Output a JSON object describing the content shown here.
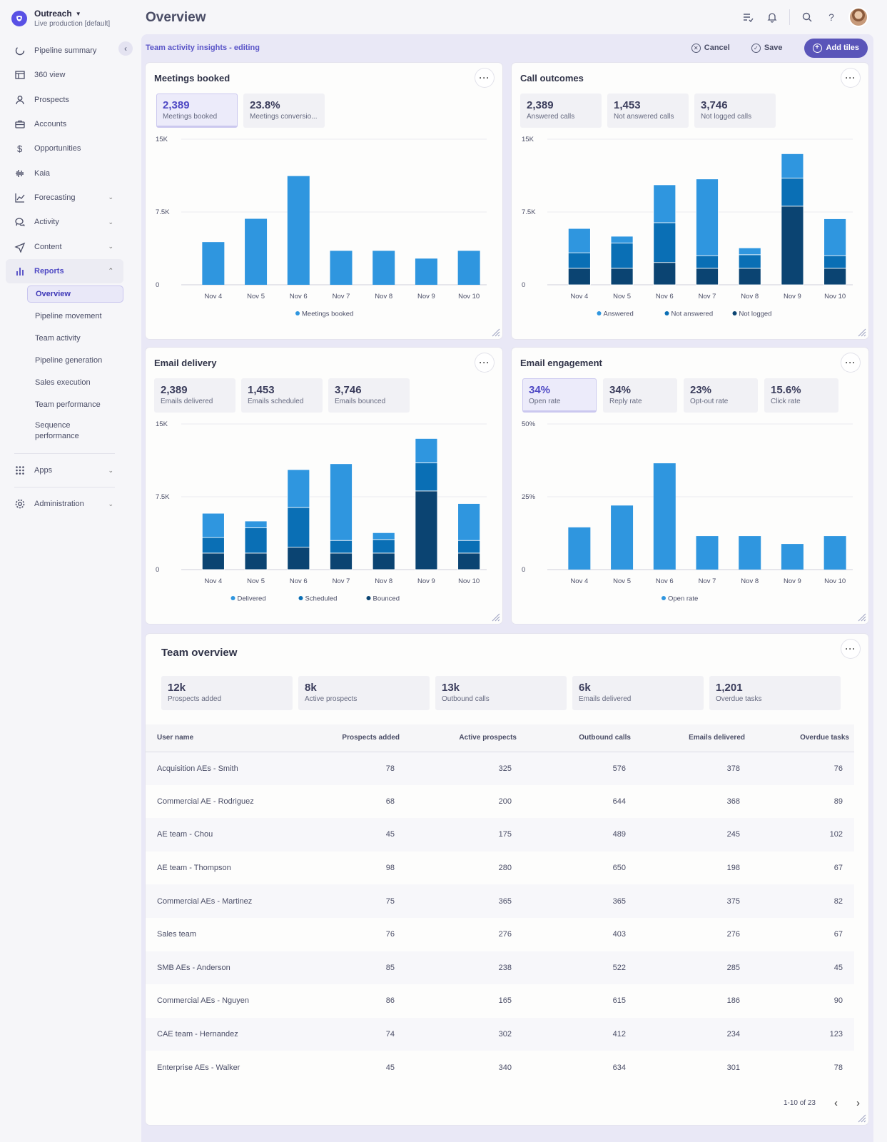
{
  "org": {
    "name": "Outreach",
    "env": "Live production [default]"
  },
  "page_title": "Overview",
  "nav": [
    {
      "label": "Pipeline summary",
      "icon": "pipeline-icon",
      "chevron": ""
    },
    {
      "label": "360 view",
      "icon": "table-icon",
      "chevron": ""
    },
    {
      "label": "Prospects",
      "icon": "person-icon",
      "chevron": ""
    },
    {
      "label": "Accounts",
      "icon": "briefcase-icon",
      "chevron": ""
    },
    {
      "label": "Opportunities",
      "icon": "dollar-icon",
      "chevron": ""
    },
    {
      "label": "Kaia",
      "icon": "waveform-icon",
      "chevron": ""
    },
    {
      "label": "Forecasting",
      "icon": "trend-icon",
      "chevron": "⌄"
    },
    {
      "label": "Activity",
      "icon": "chat-icon",
      "chevron": "⌄"
    },
    {
      "label": "Content",
      "icon": "send-icon",
      "chevron": "⌄"
    },
    {
      "label": "Reports",
      "icon": "bar-chart-icon",
      "chevron": "⌃"
    }
  ],
  "reports_sub": [
    "Overview",
    "Pipeline movement",
    "Team activity",
    "Pipeline generation",
    "Sales execution",
    "Team performance",
    "Sequence performance"
  ],
  "nav_bottom": [
    {
      "label": "Apps",
      "icon": "grid-icon",
      "chevron": "⌄"
    },
    {
      "label": "Administration",
      "icon": "gear-icon",
      "chevron": "⌄"
    }
  ],
  "edit_bar": {
    "title": "Team activity insights - editing",
    "cancel": "Cancel",
    "save": "Save",
    "add": "Add tiles"
  },
  "colors": {
    "light": "#2f96df",
    "mid": "#0a6fb5",
    "dark": "#0b4472",
    "accent": "#5a55b9"
  },
  "cards": {
    "meetings": {
      "title": "Meetings booked",
      "metrics": [
        {
          "val": "2,389",
          "lbl": "Meetings booked"
        },
        {
          "val": "23.8%",
          "lbl": "Meetings conversio..."
        }
      ],
      "chart_data": {
        "type": "bar",
        "categories": [
          "Nov 4",
          "Nov 5",
          "Nov 6",
          "Nov 7",
          "Nov 8",
          "Nov 9",
          "Nov 10"
        ],
        "yticks": [
          "15K",
          "7.5K",
          "0"
        ],
        "ylim": [
          0,
          15000
        ],
        "series": [
          {
            "name": "Meetings booked",
            "values": [
              4400,
              6800,
              11200,
              3500,
              3500,
              2700,
              3500
            ]
          }
        ]
      }
    },
    "calls": {
      "title": "Call outcomes",
      "metrics": [
        {
          "val": "2,389",
          "lbl": "Answered calls"
        },
        {
          "val": "1,453",
          "lbl": "Not answered calls"
        },
        {
          "val": "3,746",
          "lbl": "Not logged calls"
        }
      ],
      "chart_data": {
        "type": "bar",
        "stacked": true,
        "categories": [
          "Nov 4",
          "Nov 5",
          "Nov 6",
          "Nov 7",
          "Nov 8",
          "Nov 9",
          "Nov 10"
        ],
        "yticks": [
          "15K",
          "7.5K",
          "0"
        ],
        "ylim": [
          0,
          15000
        ],
        "series": [
          {
            "name": "Not logged",
            "values": [
              1700,
              1700,
              2300,
              1700,
              1700,
              8100,
              1700
            ]
          },
          {
            "name": "Not answered",
            "values": [
              1600,
              2600,
              4100,
              1300,
              1400,
              2900,
              1300
            ]
          },
          {
            "name": "Answered",
            "values": [
              2500,
              700,
              3900,
              7900,
              700,
              2500,
              3800
            ]
          }
        ]
      }
    },
    "email_delivery": {
      "title": "Email delivery",
      "metrics": [
        {
          "val": "2,389",
          "lbl": "Emails delivered"
        },
        {
          "val": "1,453",
          "lbl": "Emails scheduled"
        },
        {
          "val": "3,746",
          "lbl": "Emails bounced"
        }
      ],
      "chart_data": {
        "type": "bar",
        "stacked": true,
        "categories": [
          "Nov 4",
          "Nov 5",
          "Nov 6",
          "Nov 7",
          "Nov 8",
          "Nov 9",
          "Nov 10"
        ],
        "yticks": [
          "15K",
          "7.5K",
          "0"
        ],
        "ylim": [
          0,
          15000
        ],
        "series": [
          {
            "name": "Bounced",
            "values": [
              1700,
              1700,
              2300,
              1700,
              1700,
              8100,
              1700
            ]
          },
          {
            "name": "Scheduled",
            "values": [
              1600,
              2600,
              4100,
              1300,
              1400,
              2900,
              1300
            ]
          },
          {
            "name": "Delivered",
            "values": [
              2500,
              700,
              3900,
              7900,
              700,
              2500,
              3800
            ]
          }
        ]
      }
    },
    "email_engagement": {
      "title": "Email engagement",
      "metrics": [
        {
          "val": "34%",
          "lbl": "Open rate"
        },
        {
          "val": "34%",
          "lbl": "Reply rate"
        },
        {
          "val": "23%",
          "lbl": "Opt-out rate"
        },
        {
          "val": "15.6%",
          "lbl": "Click rate"
        }
      ],
      "chart_data": {
        "type": "bar",
        "categories": [
          "Nov 4",
          "Nov 5",
          "Nov 6",
          "Nov 7",
          "Nov 8",
          "Nov 9",
          "Nov 10"
        ],
        "yticks": [
          "50%",
          "25%",
          "0"
        ],
        "ylim": [
          0,
          50
        ],
        "series": [
          {
            "name": "Open rate",
            "values": [
              14.5,
              22,
              36.5,
              11.5,
              11.5,
              8.8,
              11.5
            ]
          }
        ]
      }
    }
  },
  "team_overview": {
    "title": "Team overview",
    "metrics": [
      {
        "val": "12k",
        "lbl": "Prospects added"
      },
      {
        "val": "8k",
        "lbl": "Active prospects"
      },
      {
        "val": "13k",
        "lbl": "Outbound calls"
      },
      {
        "val": "6k",
        "lbl": "Emails delivered"
      },
      {
        "val": "1,201",
        "lbl": "Overdue tasks"
      }
    ],
    "columns": [
      "User name",
      "Prospects added",
      "Active prospects",
      "Outbound calls",
      "Emails delivered",
      "Overdue tasks"
    ],
    "rows": [
      [
        "Acquisition AEs - Smith",
        "78",
        "325",
        "576",
        "378",
        "76"
      ],
      [
        "Commercial AE - Rodriguez",
        "68",
        "200",
        "644",
        "368",
        "89"
      ],
      [
        "AE team - Chou",
        "45",
        "175",
        "489",
        "245",
        "102"
      ],
      [
        "AE team - Thompson",
        "98",
        "280",
        "650",
        "198",
        "67"
      ],
      [
        "Commercial AEs - Martinez",
        "75",
        "365",
        "365",
        "375",
        "82"
      ],
      [
        "Sales team",
        "76",
        "276",
        "403",
        "276",
        "67"
      ],
      [
        "SMB AEs - Anderson",
        "85",
        "238",
        "522",
        "285",
        "45"
      ],
      [
        "Commercial AEs - Nguyen",
        "86",
        "165",
        "615",
        "186",
        "90"
      ],
      [
        "CAE team - Hernandez",
        "74",
        "302",
        "412",
        "234",
        "123"
      ],
      [
        "Enterprise AEs - Walker",
        "45",
        "340",
        "634",
        "301",
        "78"
      ]
    ],
    "pagination": "1-10 of 23"
  }
}
